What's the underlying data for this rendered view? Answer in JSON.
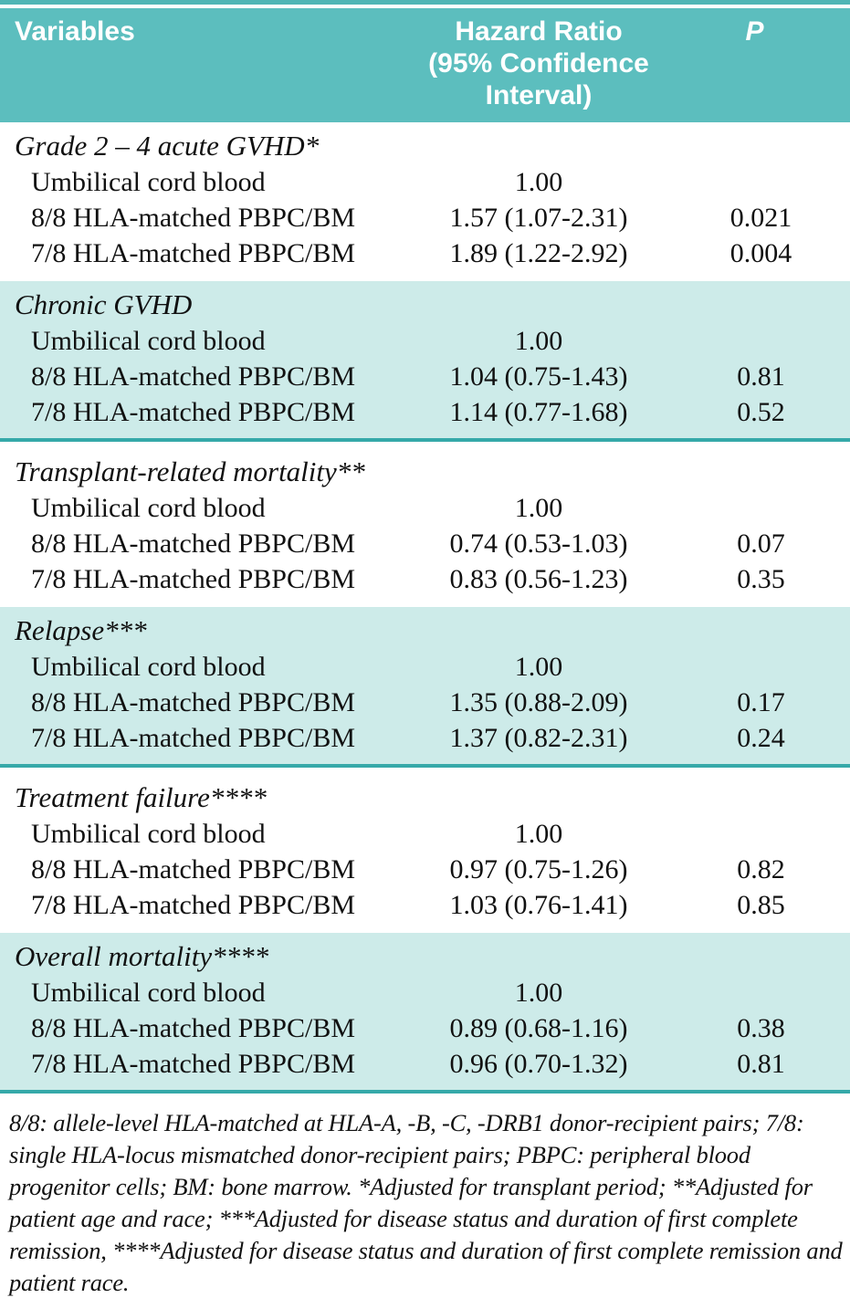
{
  "colors": {
    "header_teal": "#5cbebe",
    "top_line_teal": "#4fb5b5",
    "section_light_teal": "#cdebe9",
    "divider_teal": "#35a9a9",
    "header_text": "#ffffff",
    "body_text": "#111111"
  },
  "header": {
    "variables_label": "Variables",
    "hazard_ratio_line1": "Hazard Ratio",
    "hazard_ratio_line2": "(95% Confidence Interval)",
    "p_label": "P"
  },
  "sections": [
    {
      "title": "Grade 2 – 4 acute GVHD*",
      "shaded": false,
      "rows": [
        {
          "label": "Umbilical cord blood",
          "hr": "1.00",
          "p": ""
        },
        {
          "label": "8/8 HLA-matched PBPC/BM",
          "hr": "1.57 (1.07-2.31)",
          "p": "0.021"
        },
        {
          "label": "7/8 HLA-matched PBPC/BM",
          "hr": "1.89 (1.22-2.92)",
          "p": "0.004"
        }
      ]
    },
    {
      "title": "Chronic GVHD",
      "shaded": true,
      "rows": [
        {
          "label": "Umbilical cord blood",
          "hr": "1.00",
          "p": ""
        },
        {
          "label": "8/8 HLA-matched PBPC/BM",
          "hr": "1.04 (0.75-1.43)",
          "p": "0.81"
        },
        {
          "label": "7/8 HLA-matched PBPC/BM",
          "hr": "1.14 (0.77-1.68)",
          "p": "0.52"
        }
      ]
    },
    {
      "title": "Transplant-related mortality**",
      "shaded": false,
      "rows": [
        {
          "label": "Umbilical cord blood",
          "hr": "1.00",
          "p": ""
        },
        {
          "label": "8/8 HLA-matched PBPC/BM",
          "hr": "0.74 (0.53-1.03)",
          "p": "0.07"
        },
        {
          "label": "7/8 HLA-matched PBPC/BM",
          "hr": "0.83 (0.56-1.23)",
          "p": "0.35"
        }
      ]
    },
    {
      "title": "Relapse***",
      "shaded": true,
      "rows": [
        {
          "label": "Umbilical cord blood",
          "hr": "1.00",
          "p": ""
        },
        {
          "label": "8/8 HLA-matched PBPC/BM",
          "hr": "1.35 (0.88-2.09)",
          "p": "0.17"
        },
        {
          "label": "7/8 HLA-matched PBPC/BM",
          "hr": "1.37 (0.82-2.31)",
          "p": "0.24"
        }
      ]
    },
    {
      "title": "Treatment failure****",
      "shaded": false,
      "rows": [
        {
          "label": "Umbilical cord blood",
          "hr": "1.00",
          "p": ""
        },
        {
          "label": "8/8 HLA-matched PBPC/BM",
          "hr": "0.97 (0.75-1.26)",
          "p": "0.82"
        },
        {
          "label": "7/8 HLA-matched PBPC/BM",
          "hr": "1.03 (0.76-1.41)",
          "p": "0.85"
        }
      ]
    },
    {
      "title": "Overall mortality****",
      "shaded": true,
      "rows": [
        {
          "label": "Umbilical cord blood",
          "hr": "1.00",
          "p": ""
        },
        {
          "label": "8/8 HLA-matched PBPC/BM",
          "hr": "0.89 (0.68-1.16)",
          "p": "0.38"
        },
        {
          "label": "7/8 HLA-matched PBPC/BM",
          "hr": "0.96 (0.70-1.32)",
          "p": "0.81"
        }
      ]
    }
  ],
  "footnote": "8/8: allele-level HLA-matched at HLA-A, -B, -C, -DRB1 donor-recipient pairs; 7/8: single HLA-locus mismatched donor-recipient pairs; PBPC: peripheral blood progenitor cells; BM: bone marrow. *Adjusted for transplant period; **Adjusted for patient age and race; ***Adjusted for disease status and duration of first complete remission, ****Adjusted for disease status and duration of first complete remission and patient race."
}
